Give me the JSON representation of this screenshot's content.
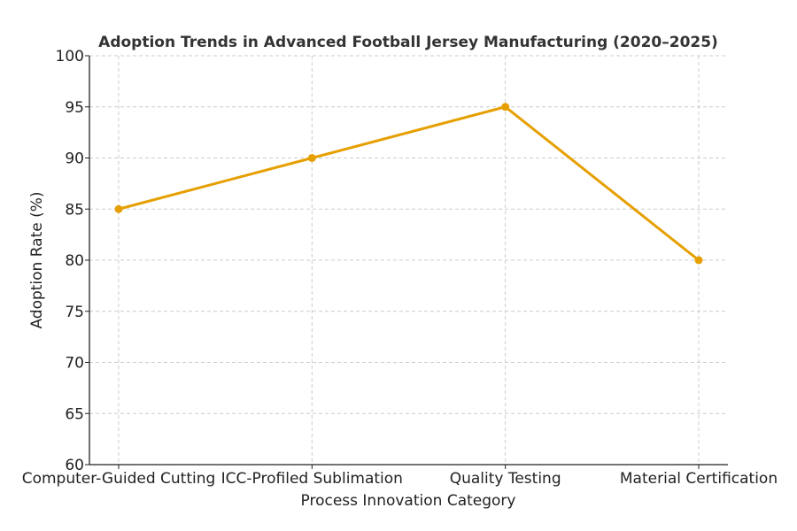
{
  "chart_data": {
    "type": "line",
    "title": "Adoption Trends in Advanced Football Jersey Manufacturing (2020–2025)",
    "xlabel": "Process Innovation Category",
    "ylabel": "Adoption Rate (%)",
    "categories": [
      "Computer-Guided Cutting",
      "ICC-Profiled Sublimation",
      "Quality Testing",
      "Material Certification"
    ],
    "series": [
      {
        "name": "Adoption Rate",
        "values": [
          85,
          90,
          95,
          80
        ],
        "color": "#E69F00"
      }
    ],
    "ylim": [
      60,
      100
    ],
    "yticks": [
      60,
      65,
      70,
      75,
      80,
      85,
      90,
      95,
      100
    ],
    "grid": true,
    "legend": "none"
  }
}
